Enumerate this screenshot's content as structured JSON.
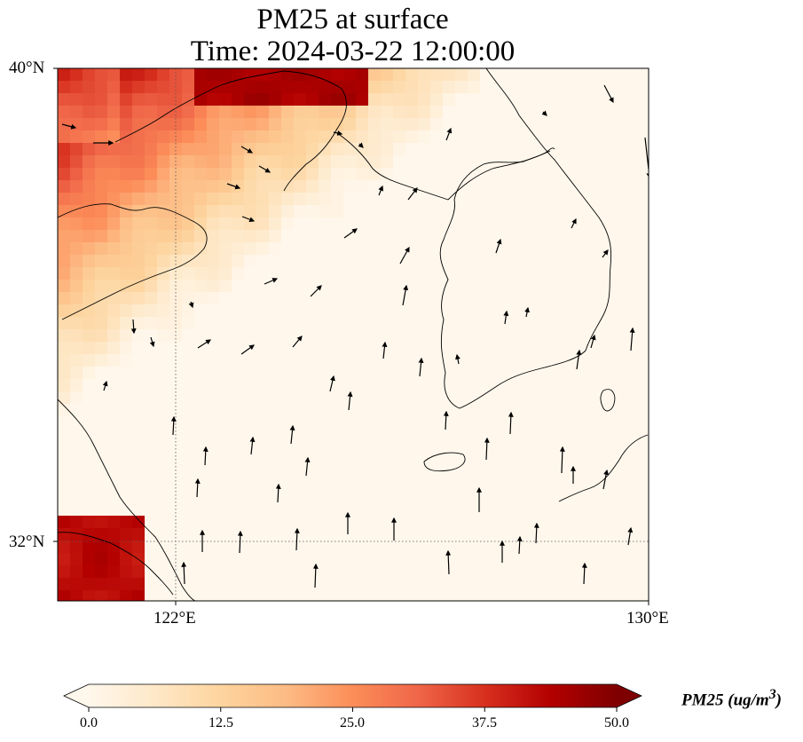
{
  "title": {
    "line1": "PM25 at surface",
    "line2": "Time: 2024-03-22 12:00:00"
  },
  "axes": {
    "lat_ticks": [
      "40°N",
      "32°N"
    ],
    "lon_ticks": [
      "122°E",
      "130°E"
    ],
    "extent": {
      "lon_min": 120,
      "lon_max": 130,
      "lat_min": 31,
      "lat_max": 40
    },
    "gridlines": true
  },
  "colorbar": {
    "label": "PM25 (ug/m",
    "label_sup": "3",
    "label_close": ")",
    "ticks": [
      "0.0",
      "12.5",
      "25.0",
      "37.5",
      "50.0"
    ],
    "range": [
      0,
      50
    ],
    "extend": "both",
    "colormap": "OrRd",
    "colors": [
      "#fff7ec",
      "#fee8c8",
      "#fdd49e",
      "#fdbb84",
      "#fc8d59",
      "#ef6548",
      "#d7301f",
      "#b30000",
      "#7f0000"
    ]
  },
  "layers": {
    "field": "PM25 surface concentration",
    "vectors": "wind",
    "coastline_color": "#000000"
  }
}
